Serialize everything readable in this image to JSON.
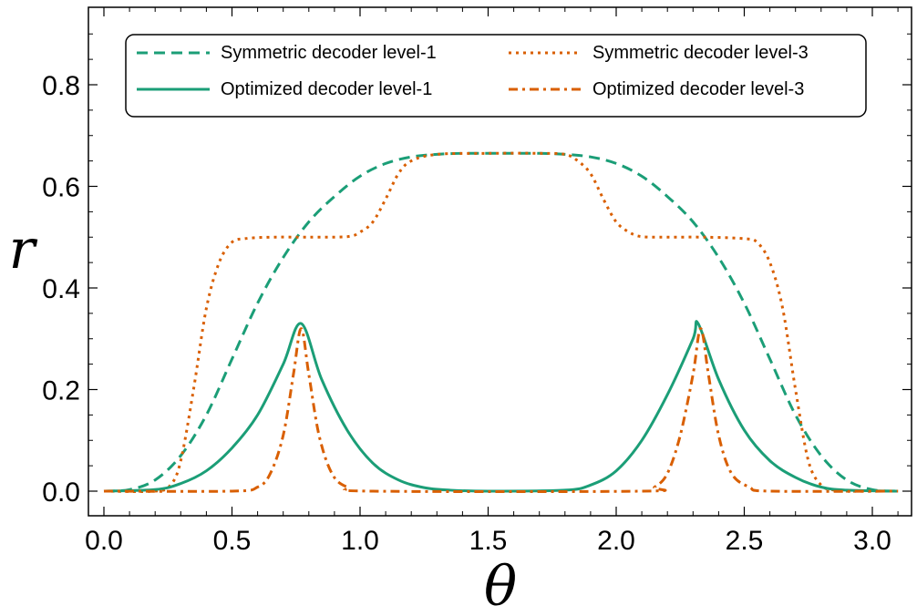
{
  "chart_data": {
    "type": "line",
    "title": "",
    "xlabel": "θ",
    "ylabel": "r",
    "xlim": [
      -0.1,
      3.2
    ],
    "ylim": [
      -0.04,
      0.92
    ],
    "xticks": [
      "0.0",
      "0.5",
      "1.0",
      "1.5",
      "2.0",
      "2.5",
      "3.0"
    ],
    "yticks": [
      "0.0",
      "0.2",
      "0.4",
      "0.6",
      "0.8"
    ],
    "xtick_values": [
      0.0,
      0.5,
      1.0,
      1.5,
      2.0,
      2.5,
      3.0
    ],
    "ytick_values": [
      0.0,
      0.2,
      0.4,
      0.6,
      0.8
    ],
    "legend_position": "top",
    "colors": {
      "green": "#1b9e77",
      "orange": "#d95f02"
    },
    "series": [
      {
        "name": "Symmetric decoder level-1",
        "color": "#1b9e77",
        "dash": "dashed",
        "x": [
          0.0,
          0.1,
          0.2,
          0.3,
          0.4,
          0.5,
          0.6,
          0.7,
          0.8,
          0.9,
          1.0,
          1.1,
          1.2,
          1.3,
          1.4,
          1.5,
          1.6,
          1.7,
          1.8,
          1.9,
          2.0,
          2.1,
          2.2,
          2.3,
          2.4,
          2.5,
          2.6,
          2.7,
          2.8,
          2.9,
          3.0,
          3.1
        ],
        "values": [
          0.0,
          0.003,
          0.022,
          0.07,
          0.15,
          0.26,
          0.37,
          0.46,
          0.53,
          0.58,
          0.62,
          0.645,
          0.658,
          0.663,
          0.665,
          0.665,
          0.665,
          0.665,
          0.663,
          0.658,
          0.645,
          0.62,
          0.58,
          0.53,
          0.46,
          0.37,
          0.26,
          0.15,
          0.07,
          0.022,
          0.003,
          0.0
        ]
      },
      {
        "name": "Symmetric decoder level-3",
        "color": "#d95f02",
        "dash": "dotted",
        "x": [
          0.0,
          0.2,
          0.26,
          0.3,
          0.35,
          0.4,
          0.45,
          0.5,
          0.55,
          0.65,
          0.8,
          0.95,
          1.0,
          1.05,
          1.1,
          1.15,
          1.2,
          1.3,
          1.5,
          1.7,
          1.8,
          1.85,
          1.9,
          1.95,
          2.0,
          2.05,
          2.1,
          2.2,
          2.35,
          2.5,
          2.55,
          2.6,
          2.65,
          2.7,
          2.75,
          2.8,
          2.85,
          2.9,
          3.1
        ],
        "values": [
          0.0,
          0.0,
          0.012,
          0.06,
          0.2,
          0.36,
          0.45,
          0.49,
          0.497,
          0.5,
          0.5,
          0.501,
          0.51,
          0.53,
          0.575,
          0.625,
          0.65,
          0.663,
          0.665,
          0.665,
          0.663,
          0.65,
          0.625,
          0.575,
          0.53,
          0.51,
          0.501,
          0.5,
          0.5,
          0.497,
          0.49,
          0.45,
          0.36,
          0.2,
          0.06,
          0.012,
          0.002,
          0.0,
          0.0
        ]
      },
      {
        "name": "Optimized decoder level-1",
        "color": "#1b9e77",
        "dash": "solid",
        "x": [
          0.0,
          0.2,
          0.3,
          0.4,
          0.5,
          0.6,
          0.7,
          0.77,
          0.85,
          0.95,
          1.05,
          1.15,
          1.25,
          1.35,
          1.5,
          1.8,
          1.9,
          2.0,
          2.1,
          2.2,
          2.3,
          2.32,
          2.4,
          2.5,
          2.6,
          2.7,
          2.8,
          2.9,
          3.1
        ],
        "values": [
          0.0,
          0.003,
          0.015,
          0.04,
          0.085,
          0.15,
          0.25,
          0.33,
          0.22,
          0.12,
          0.055,
          0.022,
          0.007,
          0.002,
          0.0,
          0.002,
          0.012,
          0.04,
          0.1,
          0.19,
          0.3,
          0.33,
          0.22,
          0.12,
          0.06,
          0.027,
          0.008,
          0.002,
          0.0
        ]
      },
      {
        "name": "Optimized decoder level-3",
        "color": "#d95f02",
        "dash": "dashdot",
        "x": [
          0.0,
          0.5,
          0.6,
          0.65,
          0.7,
          0.74,
          0.77,
          0.8,
          0.84,
          0.89,
          0.95,
          1.05,
          2.1,
          2.15,
          2.2,
          2.25,
          2.3,
          2.33,
          2.36,
          2.4,
          2.45,
          2.52,
          2.6,
          3.1
        ],
        "values": [
          0.0,
          0.0,
          0.008,
          0.035,
          0.11,
          0.23,
          0.32,
          0.23,
          0.11,
          0.035,
          0.008,
          0.0,
          0.0,
          0.008,
          0.035,
          0.11,
          0.23,
          0.32,
          0.23,
          0.11,
          0.035,
          0.008,
          0.0,
          0.0
        ]
      }
    ]
  }
}
